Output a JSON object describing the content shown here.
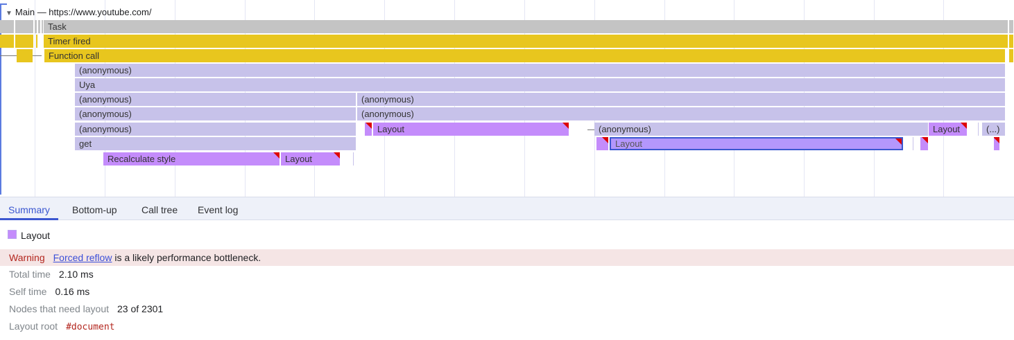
{
  "track": {
    "title": "Main — https://www.youtube.com/",
    "expand_icon": "triangle-down-icon"
  },
  "flame": {
    "task": "Task",
    "timer": "Timer fired",
    "function_call": "Function call",
    "anonymous": "(anonymous)",
    "uya": "Uya",
    "get": "get",
    "layout": "Layout",
    "recalc": "Recalculate style",
    "ellipsis": "(...)"
  },
  "colors": {
    "task": "#c4c4c4",
    "timer": "#e8c61e",
    "scripting": "#c7c2ea",
    "rendering": "#c48cfb",
    "selection": "#3b57d0",
    "warning_marker": "#dd0000"
  },
  "tabs": [
    {
      "label": "Summary",
      "active": true
    },
    {
      "label": "Bottom-up"
    },
    {
      "label": "Call tree"
    },
    {
      "label": "Event log"
    }
  ],
  "summary": {
    "title": "Layout",
    "warning_label": "Warning",
    "warning_link": "Forced reflow",
    "warning_text": " is a likely performance bottleneck.",
    "rows": [
      {
        "key": "Total time",
        "value": "2.10 ms"
      },
      {
        "key": "Self time",
        "value": "0.16 ms"
      },
      {
        "key": "Nodes that need layout",
        "value": "23 of 2301"
      },
      {
        "key": "Layout root",
        "value": "#document"
      }
    ]
  }
}
